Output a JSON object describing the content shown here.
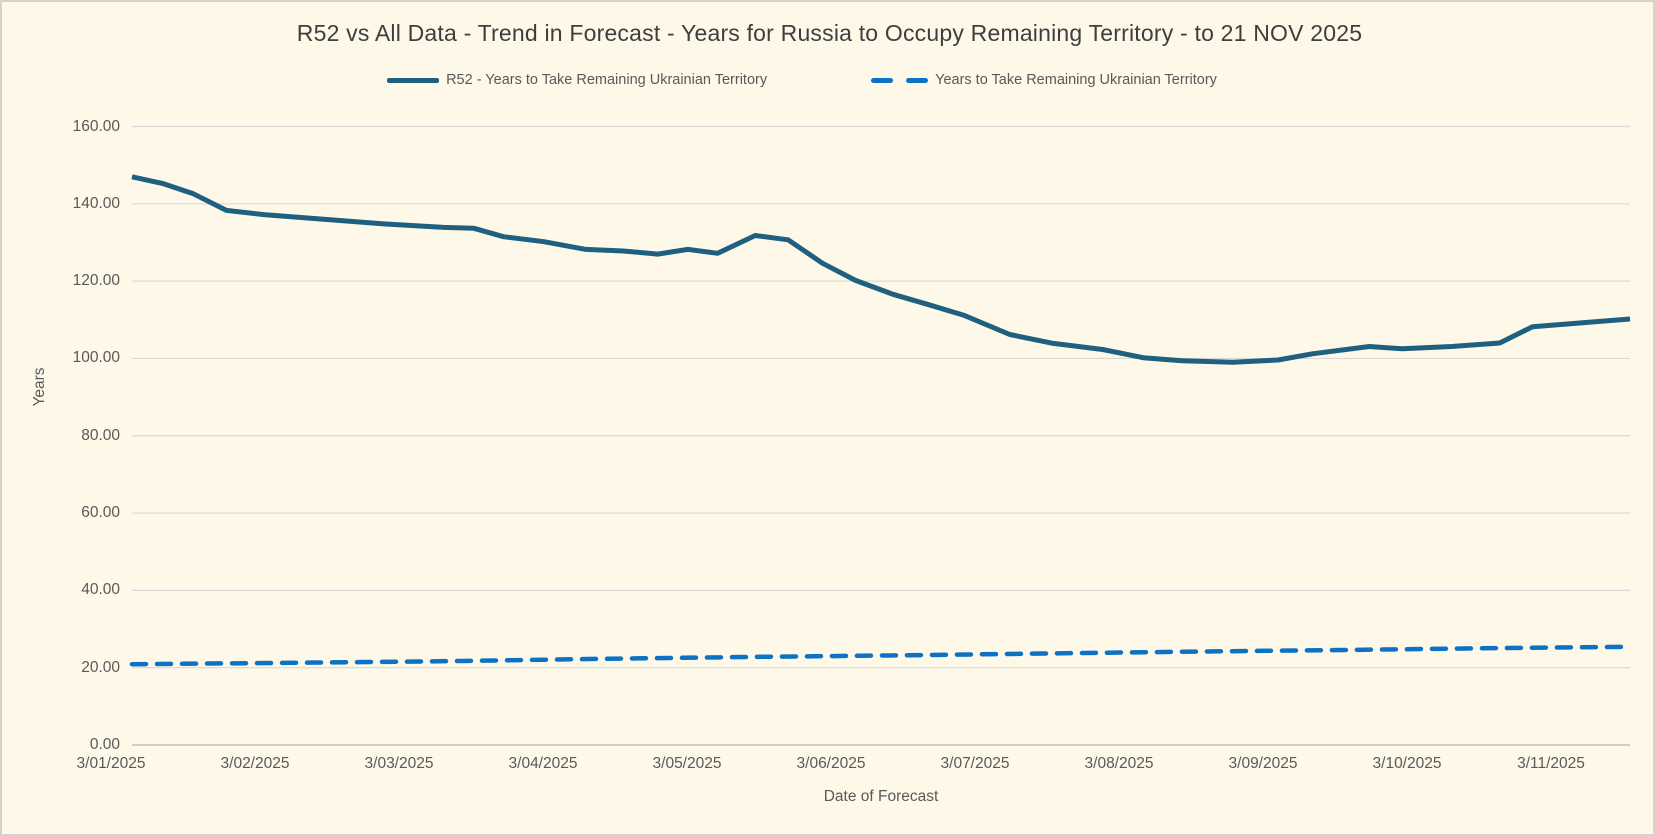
{
  "window": {
    "background_color": "#fdf8e8",
    "border_color": "#d7d3cc",
    "gridline_color": "#d9d9d9",
    "axis_line_color": "#bfbfbf",
    "text_color": "#595959",
    "title_color": "#3e3e3e"
  },
  "chart_data": {
    "type": "line",
    "title": "R52 vs All Data  - Trend in Forecast - Years for Russia to Occupy Remaining Territory - to 21 NOV 2025",
    "xlabel": "Date of Forecast",
    "ylabel": "Years",
    "ylim": [
      0,
      160
    ],
    "grid": "horizontal",
    "legend_position": "top-center",
    "y_ticks": [
      "160.00",
      "140.00",
      "120.00",
      "100.00",
      "80.00",
      "60.00",
      "40.00",
      "20.00",
      "0.00"
    ],
    "y_tick_values": [
      160,
      140,
      120,
      100,
      80,
      60,
      40,
      20,
      0
    ],
    "x_tick_labels": [
      "3/01/2025",
      "3/02/2025",
      "3/03/2025",
      "3/04/2025",
      "3/05/2025",
      "3/06/2025",
      "3/07/2025",
      "3/08/2025",
      "3/09/2025",
      "3/10/2025",
      "3/11/2025"
    ],
    "x_note": "category axis of forecast dates from 3/01/2025 through 21 NOV 2025; points sampled as [fraction-of-axis, years]",
    "series": [
      {
        "name": "R52 - Years to Take Remaining Ukrainian Territory",
        "style": "solid",
        "color": "#1f5f7f",
        "stroke_width": 5,
        "points": [
          [
            0.0,
            147.0
          ],
          [
            0.021,
            145.2
          ],
          [
            0.041,
            142.6
          ],
          [
            0.063,
            138.3
          ],
          [
            0.088,
            137.2
          ],
          [
            0.128,
            136.0
          ],
          [
            0.168,
            134.8
          ],
          [
            0.208,
            133.9
          ],
          [
            0.228,
            133.7
          ],
          [
            0.248,
            131.5
          ],
          [
            0.275,
            130.2
          ],
          [
            0.303,
            128.2
          ],
          [
            0.328,
            127.8
          ],
          [
            0.351,
            127.0
          ],
          [
            0.371,
            128.2
          ],
          [
            0.391,
            127.2
          ],
          [
            0.416,
            131.8
          ],
          [
            0.438,
            130.7
          ],
          [
            0.461,
            124.6
          ],
          [
            0.483,
            120.2
          ],
          [
            0.508,
            116.6
          ],
          [
            0.531,
            114.0
          ],
          [
            0.555,
            111.2
          ],
          [
            0.586,
            106.2
          ],
          [
            0.615,
            103.9
          ],
          [
            0.648,
            102.3
          ],
          [
            0.675,
            100.2
          ],
          [
            0.701,
            99.4
          ],
          [
            0.735,
            99.0
          ],
          [
            0.765,
            99.6
          ],
          [
            0.788,
            101.2
          ],
          [
            0.826,
            103.1
          ],
          [
            0.848,
            102.5
          ],
          [
            0.881,
            103.1
          ],
          [
            0.913,
            104.0
          ],
          [
            0.935,
            108.2
          ],
          [
            0.958,
            108.9
          ],
          [
            0.981,
            109.6
          ],
          [
            1.0,
            110.2
          ]
        ]
      },
      {
        "name": "Years to Take Remaining Ukrainian Territory",
        "style": "dashed",
        "color": "#0e72c4",
        "stroke_width": 4.5,
        "dash_pattern": "14 11",
        "points": [
          [
            0.0,
            20.9
          ],
          [
            0.115,
            21.3
          ],
          [
            0.215,
            21.7
          ],
          [
            0.315,
            22.3
          ],
          [
            0.415,
            22.8
          ],
          [
            0.515,
            23.2
          ],
          [
            0.615,
            23.7
          ],
          [
            0.715,
            24.2
          ],
          [
            0.815,
            24.6
          ],
          [
            0.915,
            25.1
          ],
          [
            1.0,
            25.4
          ]
        ]
      }
    ]
  }
}
